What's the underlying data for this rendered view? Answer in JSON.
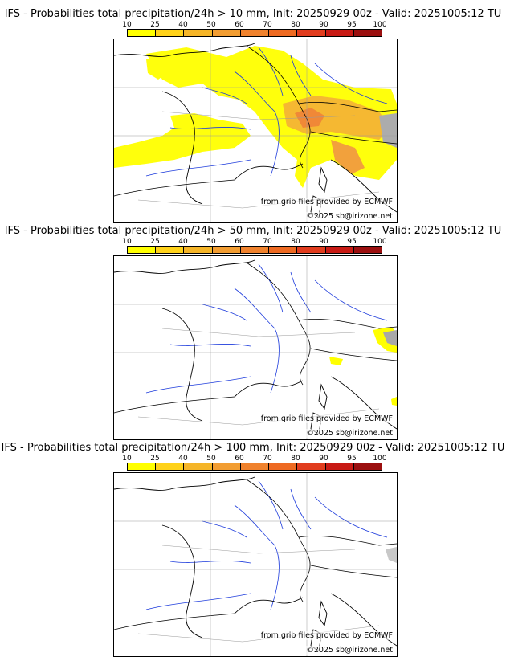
{
  "legend": {
    "ticks": [
      "10",
      "25",
      "40",
      "50",
      "60",
      "70",
      "80",
      "90",
      "95",
      "100"
    ],
    "colors": [
      "#ffff00",
      "#ffd21a",
      "#f5b528",
      "#f29d32",
      "#f0822d",
      "#ee6a22",
      "#e13c1e",
      "#c81a14",
      "#9b0f0f",
      "#640a0a"
    ]
  },
  "credits": {
    "source": "from grib files provided by ECMWF",
    "copyright": "©2025 sb@irizone.net"
  },
  "panels": [
    {
      "title": "IFS - Probabilities total precipitation/24h > 10 mm, Init: 20250929 00z - Valid: 20251005:12 TU",
      "threshold_mm": 10
    },
    {
      "title": "IFS - Probabilities total precipitation/24h > 50 mm, Init: 20250929 00z - Valid: 20251005:12 TU",
      "threshold_mm": 50
    },
    {
      "title": "IFS - Probabilities total precipitation/24h > 100 mm, Init: 20250929 00z - Valid: 20251005:12 TU",
      "threshold_mm": 100
    }
  ]
}
